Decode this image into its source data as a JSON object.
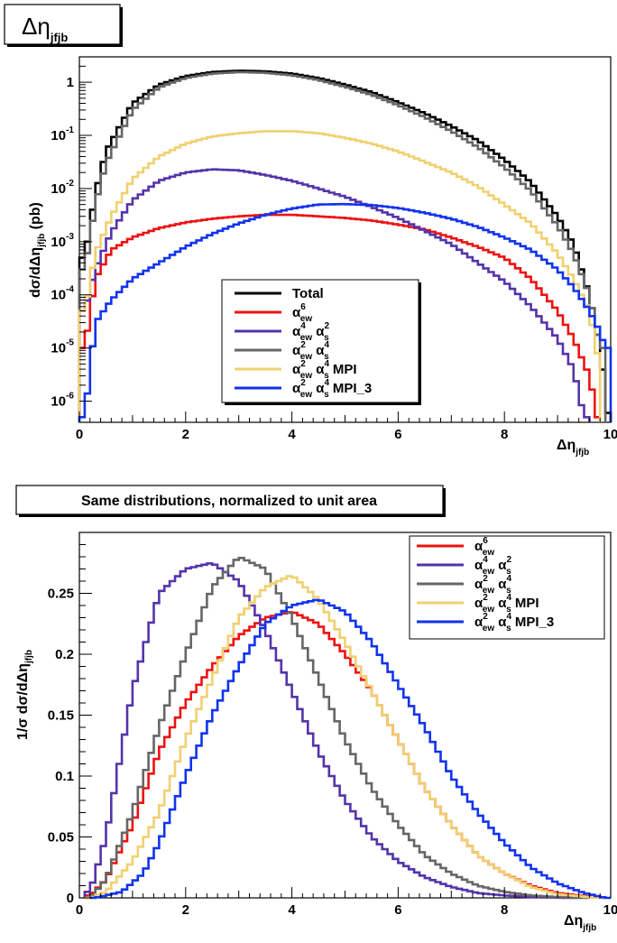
{
  "top_panel": {
    "title": "Δη",
    "title_sub": "jfjb",
    "ylabel": "dσ/dΔη",
    "ylabel_sub": "jfjb",
    "ylabel_unit": " (pb)",
    "xlabel": "Δη",
    "xlabel_sub": "jfjb",
    "xticks": [
      "0",
      "2",
      "4",
      "6",
      "8",
      "10"
    ],
    "yticks": [
      {
        "base": "1",
        "exp": ""
      },
      {
        "base": "10",
        "exp": "-1"
      },
      {
        "base": "10",
        "exp": "-2"
      },
      {
        "base": "10",
        "exp": "-3"
      },
      {
        "base": "10",
        "exp": "-4"
      },
      {
        "base": "10",
        "exp": "-5"
      },
      {
        "base": "10",
        "exp": "-6"
      }
    ],
    "legend": [
      {
        "sym": "",
        "sup": "",
        "sub": "",
        "text": "Total"
      },
      {
        "sym": "α",
        "sup": "6",
        "sub": "ew",
        "text": ""
      },
      {
        "sym": "α",
        "sup": "4",
        "sub": "ew",
        "text": " α",
        "sup2": "2",
        "sub2": "s",
        "tail": ""
      },
      {
        "sym": "α",
        "sup": "2",
        "sub": "ew",
        "text": " α",
        "sup2": "4",
        "sub2": "s",
        "tail": ""
      },
      {
        "sym": "α",
        "sup": "2",
        "sub": "ew",
        "text": " α",
        "sup2": "4",
        "sub2": "s",
        "tail": " MPI"
      },
      {
        "sym": "α",
        "sup": "2",
        "sub": "ew",
        "text": " α",
        "sup2": "4",
        "sub2": "s",
        "tail": " MPI_3"
      }
    ]
  },
  "bottom_panel": {
    "title": "Same distributions, normalized to unit area",
    "ylabel": "1/σ dσ/dΔη",
    "ylabel_sub": "jfjb",
    "xlabel": "Δη",
    "xlabel_sub": "jfjb",
    "xticks": [
      "0",
      "2",
      "4",
      "6",
      "8",
      "10"
    ],
    "yticks": [
      "0",
      "0.05",
      "0.1",
      "0.15",
      "0.2",
      "0.25"
    ]
  },
  "chart_data": [
    {
      "type": "line",
      "step": true,
      "yscale": "log",
      "xlim": [
        0,
        10
      ],
      "ylim": [
        4e-07,
        3
      ],
      "series": [
        {
          "name": "Total",
          "color": "#000000",
          "x": [
            0.1,
            0.3,
            0.5,
            1.0,
            1.5,
            2.0,
            2.5,
            3.0,
            3.5,
            4.0,
            4.5,
            5.0,
            5.5,
            6.0,
            6.5,
            7.0,
            7.5,
            8.0,
            8.5,
            9.0,
            9.3,
            9.6,
            9.8,
            9.95
          ],
          "y": [
            0.0005,
            0.008,
            0.05,
            0.4,
            0.9,
            1.3,
            1.55,
            1.65,
            1.6,
            1.45,
            1.2,
            0.9,
            0.65,
            0.42,
            0.26,
            0.15,
            0.08,
            0.035,
            0.013,
            0.003,
            0.0009,
            0.0001,
            1e-05,
            6e-07
          ]
        },
        {
          "name": "α⁶ew",
          "color": "#ee1111",
          "x": [
            0.1,
            0.3,
            0.6,
            1.0,
            1.5,
            2.0,
            2.5,
            3.0,
            3.5,
            4.0,
            4.5,
            5.0,
            5.5,
            6.0,
            6.5,
            7.0,
            7.5,
            8.0,
            8.5,
            9.0,
            9.3,
            9.6,
            9.75
          ],
          "y": [
            1e-05,
            0.0002,
            0.0007,
            0.0012,
            0.0018,
            0.0023,
            0.0027,
            0.003,
            0.0032,
            0.0032,
            0.003,
            0.0028,
            0.0025,
            0.0021,
            0.0017,
            0.0012,
            0.0008,
            0.0005,
            0.0002,
            5e-05,
            1.5e-05,
            3e-06,
            5e-07
          ]
        },
        {
          "name": "α⁴ew α²s",
          "color": "#5533aa",
          "x": [
            0.1,
            0.3,
            0.6,
            1.0,
            1.5,
            2.0,
            2.5,
            3.0,
            3.5,
            4.0,
            4.5,
            5.0,
            5.5,
            6.0,
            6.5,
            7.0,
            7.5,
            8.0,
            8.5,
            9.0,
            9.3,
            9.5
          ],
          "y": [
            5e-05,
            0.0003,
            0.0015,
            0.006,
            0.014,
            0.02,
            0.023,
            0.022,
            0.018,
            0.014,
            0.01,
            0.007,
            0.0045,
            0.0028,
            0.0016,
            0.0009,
            0.0004,
            0.00018,
            6e-05,
            1.5e-05,
            4e-06,
            5e-07
          ]
        },
        {
          "name": "α²ew α⁴s",
          "color": "#666666",
          "x": [
            0.1,
            0.3,
            0.5,
            1.0,
            1.5,
            2.0,
            2.5,
            3.0,
            3.5,
            4.0,
            4.5,
            5.0,
            5.5,
            6.0,
            6.5,
            7.0,
            7.5,
            8.0,
            8.5,
            9.0,
            9.3,
            9.6,
            9.8
          ],
          "y": [
            0.0003,
            0.005,
            0.03,
            0.3,
            0.8,
            1.2,
            1.45,
            1.55,
            1.5,
            1.35,
            1.1,
            0.82,
            0.58,
            0.37,
            0.22,
            0.12,
            0.06,
            0.025,
            0.009,
            0.002,
            0.0006,
            0.0001,
            1e-05
          ]
        },
        {
          "name": "α²ew α⁴s MPI",
          "color": "#f0d070",
          "x": [
            0.1,
            0.3,
            0.6,
            1.0,
            1.5,
            2.0,
            2.5,
            3.0,
            3.5,
            4.0,
            4.5,
            5.0,
            5.5,
            6.0,
            6.5,
            7.0,
            7.5,
            8.0,
            8.5,
            9.0,
            9.3,
            9.6,
            9.75
          ],
          "y": [
            5e-05,
            0.0006,
            0.003,
            0.015,
            0.04,
            0.07,
            0.095,
            0.11,
            0.12,
            0.12,
            0.11,
            0.09,
            0.07,
            0.05,
            0.032,
            0.02,
            0.011,
            0.005,
            0.0022,
            0.0006,
            0.0002,
            5e-05,
            8e-06
          ]
        },
        {
          "name": "α²ew α⁴s MPI_3",
          "color": "#1133ee",
          "x": [
            0.1,
            0.3,
            0.6,
            1.0,
            1.5,
            2.0,
            2.5,
            3.0,
            3.5,
            4.0,
            4.5,
            5.0,
            5.5,
            6.0,
            6.5,
            7.0,
            7.5,
            8.0,
            8.5,
            9.0,
            9.3,
            9.6,
            9.8,
            9.9
          ],
          "y": [
            5e-07,
            3e-05,
            8e-05,
            0.0002,
            0.0004,
            0.0008,
            0.0014,
            0.0022,
            0.0032,
            0.0042,
            0.005,
            0.0051,
            0.0049,
            0.0043,
            0.0035,
            0.0027,
            0.0019,
            0.0012,
            0.0007,
            0.0003,
            0.00014,
            5e-05,
            2e-05,
            1e-05
          ]
        }
      ]
    },
    {
      "type": "line",
      "step": true,
      "xlim": [
        0,
        10
      ],
      "ylim": [
        0,
        0.3
      ],
      "series": [
        {
          "name": "α⁶ew",
          "color": "#ee1111",
          "x": [
            0.2,
            0.5,
            1.0,
            1.5,
            2.0,
            2.5,
            3.0,
            3.5,
            4.0,
            4.5,
            5.0,
            5.5,
            6.0,
            6.5,
            7.0,
            7.5,
            8.0,
            8.5,
            9.0,
            9.5,
            9.8
          ],
          "y": [
            0.002,
            0.015,
            0.06,
            0.12,
            0.16,
            0.19,
            0.215,
            0.23,
            0.235,
            0.225,
            0.2,
            0.17,
            0.13,
            0.09,
            0.06,
            0.035,
            0.02,
            0.01,
            0.004,
            0.0015,
            0.0
          ]
        },
        {
          "name": "α⁴ew α²s",
          "color": "#5533aa",
          "x": [
            0.2,
            0.5,
            1.0,
            1.5,
            2.0,
            2.5,
            3.0,
            3.5,
            4.0,
            4.5,
            5.0,
            5.5,
            6.0,
            6.5,
            7.0,
            7.5,
            8.0,
            8.5,
            9.0,
            9.3
          ],
          "y": [
            0.005,
            0.05,
            0.17,
            0.25,
            0.27,
            0.275,
            0.26,
            0.22,
            0.17,
            0.12,
            0.08,
            0.05,
            0.03,
            0.017,
            0.009,
            0.004,
            0.002,
            0.0007,
            0.0002,
            0.0
          ]
        },
        {
          "name": "α²ew α⁴s",
          "color": "#666666",
          "x": [
            0.2,
            0.5,
            1.0,
            1.5,
            2.0,
            2.5,
            3.0,
            3.5,
            4.0,
            4.5,
            5.0,
            5.5,
            6.0,
            6.5,
            7.0,
            7.5,
            8.0,
            8.5,
            9.0,
            9.5
          ],
          "y": [
            0.0,
            0.015,
            0.07,
            0.14,
            0.2,
            0.255,
            0.28,
            0.27,
            0.23,
            0.18,
            0.13,
            0.09,
            0.06,
            0.035,
            0.02,
            0.01,
            0.005,
            0.002,
            0.0007,
            0.0
          ]
        },
        {
          "name": "α²ew α⁴s MPI",
          "color": "#f0d070",
          "x": [
            0.2,
            0.5,
            1.0,
            1.5,
            2.0,
            2.5,
            3.0,
            3.5,
            4.0,
            4.5,
            5.0,
            5.5,
            6.0,
            6.5,
            7.0,
            7.5,
            8.0,
            8.5,
            9.0,
            9.5,
            9.8
          ],
          "y": [
            0.0,
            0.005,
            0.03,
            0.07,
            0.13,
            0.18,
            0.23,
            0.255,
            0.265,
            0.245,
            0.21,
            0.17,
            0.13,
            0.09,
            0.06,
            0.035,
            0.02,
            0.009,
            0.003,
            0.001,
            0.0
          ]
        },
        {
          "name": "α²ew α⁴s MPI_3",
          "color": "#1133ee",
          "x": [
            0.3,
            0.8,
            1.2,
            1.5,
            2.0,
            2.5,
            3.0,
            3.5,
            4.0,
            4.5,
            5.0,
            5.5,
            6.0,
            6.5,
            7.0,
            7.5,
            8.0,
            8.5,
            9.0,
            9.5,
            9.9
          ],
          "y": [
            0.0,
            0.005,
            0.02,
            0.045,
            0.1,
            0.15,
            0.19,
            0.225,
            0.24,
            0.245,
            0.235,
            0.21,
            0.175,
            0.14,
            0.1,
            0.07,
            0.045,
            0.025,
            0.012,
            0.004,
            0.0
          ]
        }
      ]
    }
  ]
}
